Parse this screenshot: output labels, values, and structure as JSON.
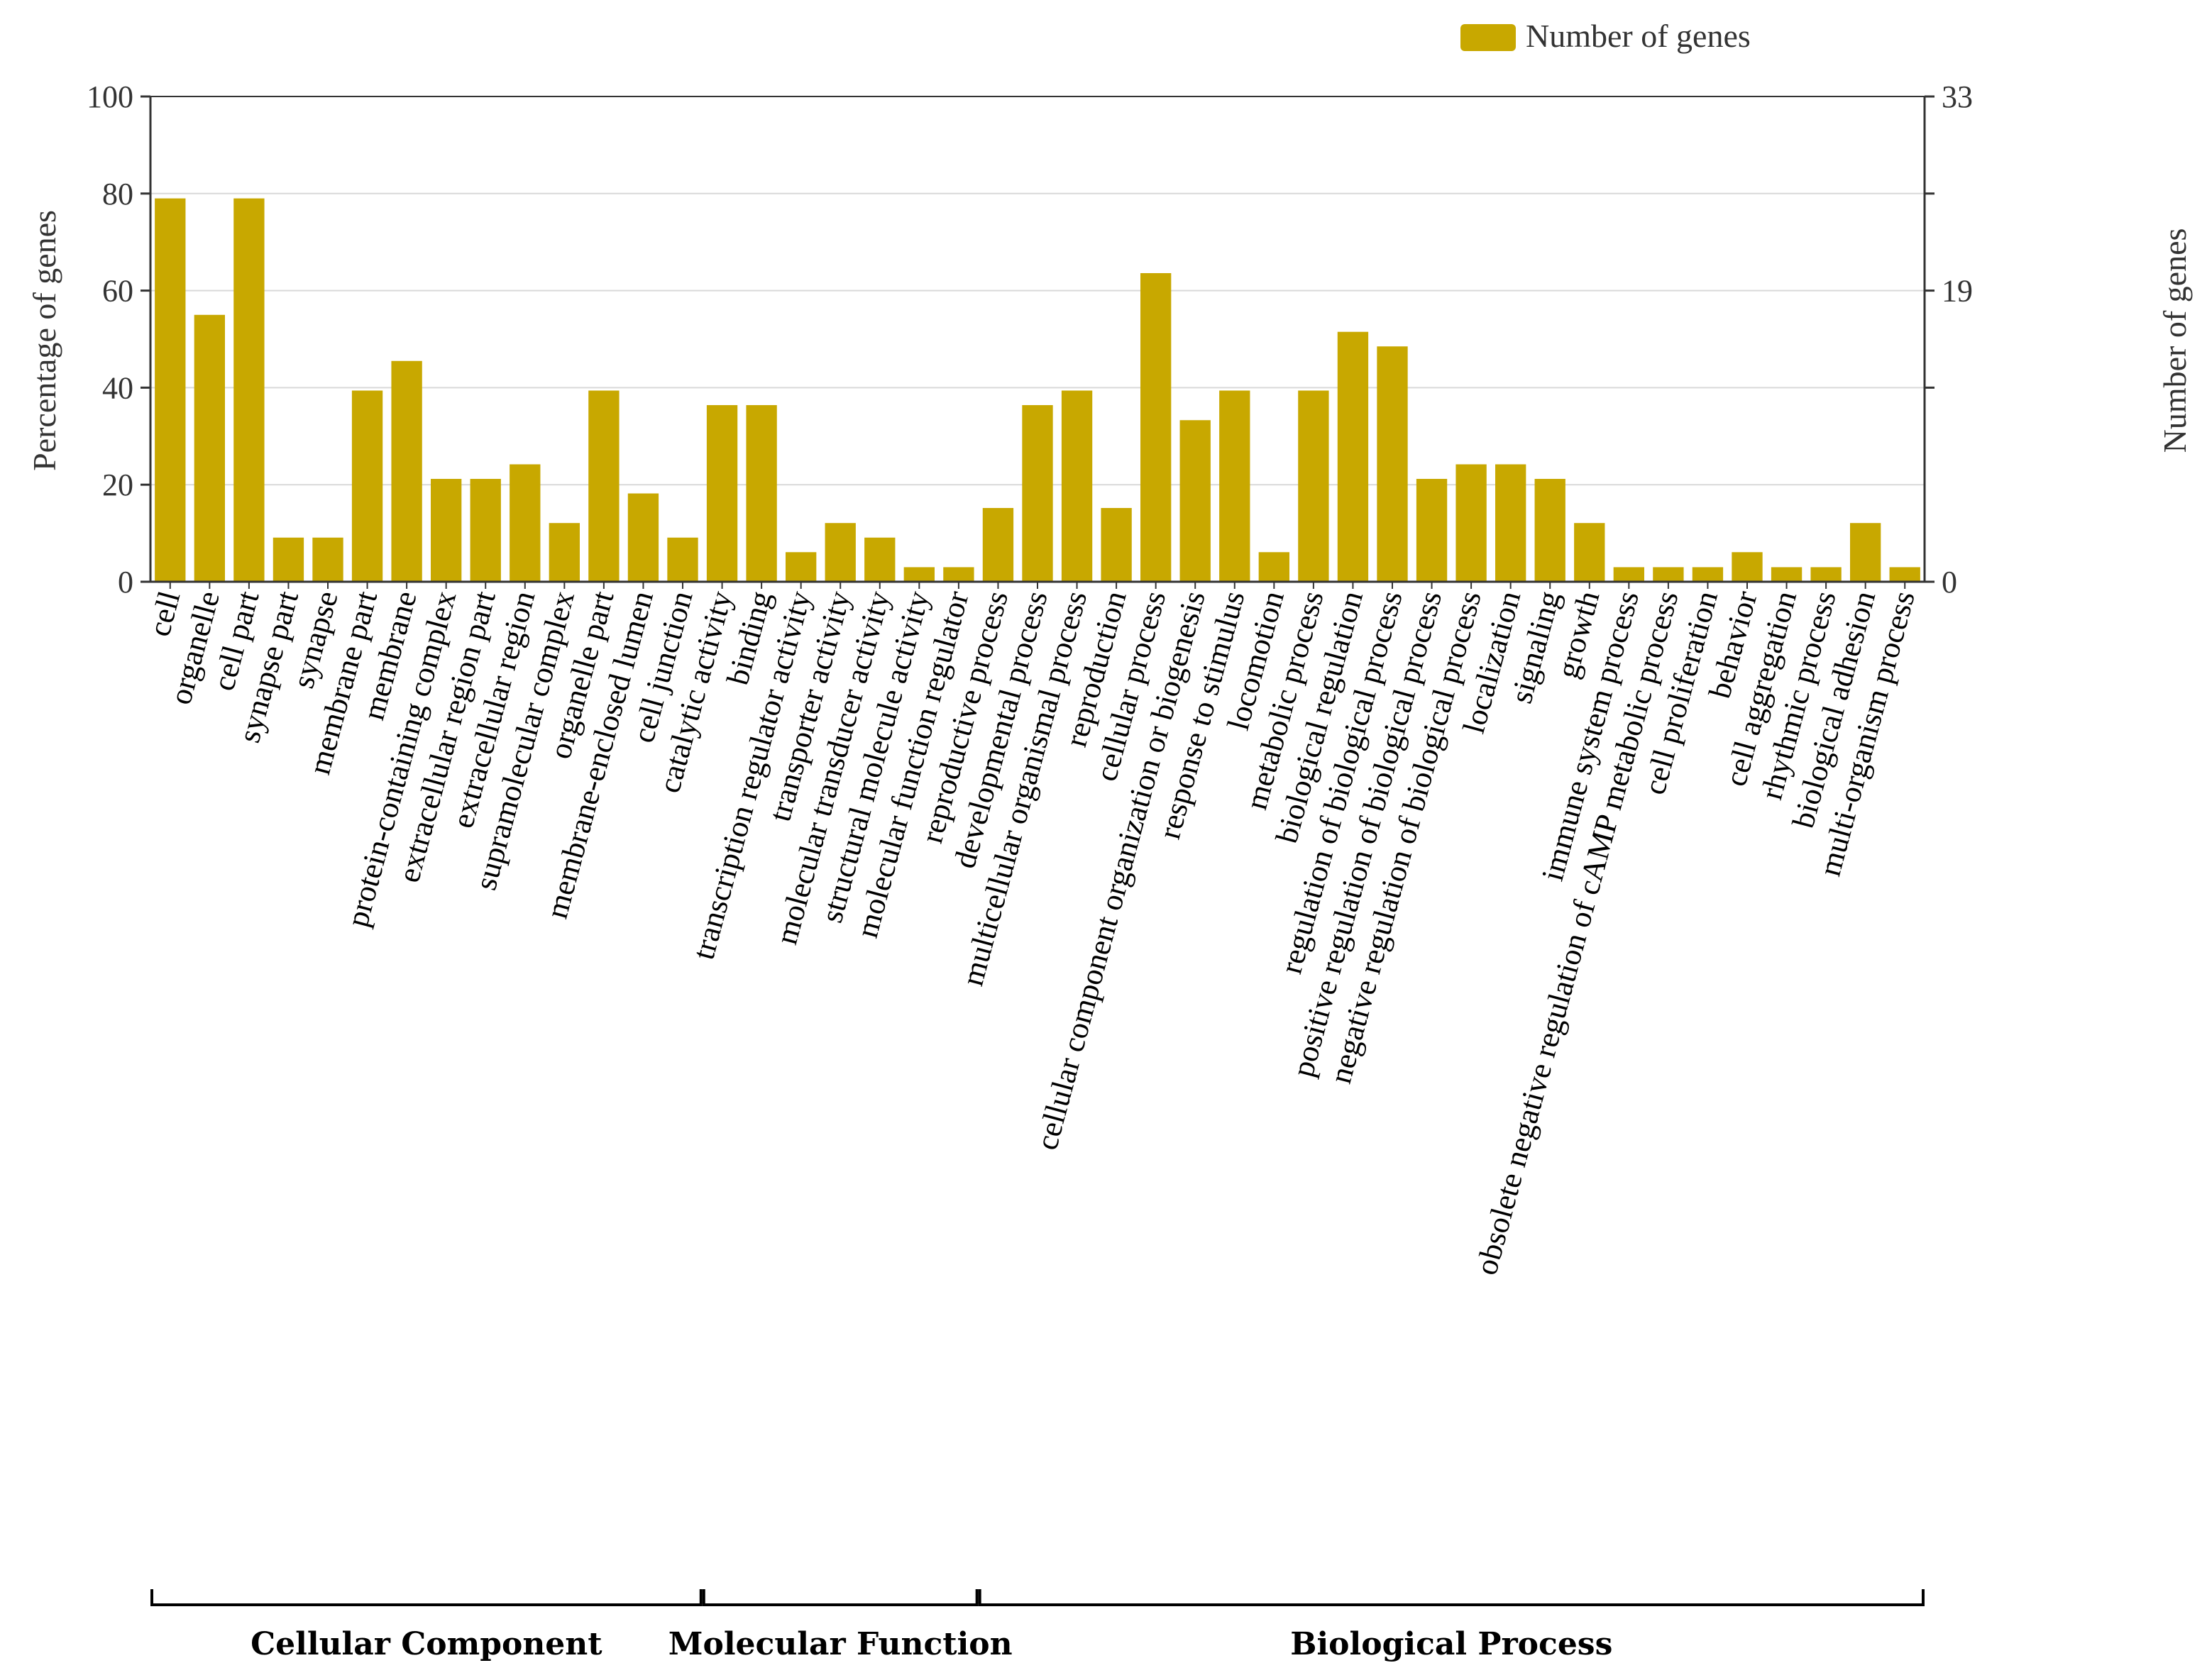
{
  "colors": {
    "bar": "#c8a800",
    "grid": "#d9d9d9",
    "axis": "#333333"
  },
  "chart_data": {
    "type": "bar",
    "legend": "Number of genes",
    "ylabel_left": "Percentage of genes",
    "ylabel_right": "Number of genes",
    "ylim": [
      0,
      100
    ],
    "yticks": [
      "0",
      "20",
      "40",
      "60",
      "80",
      "100"
    ],
    "right_ticks": [
      "0",
      "19",
      "33"
    ],
    "categories": [
      "cell",
      "organelle",
      "cell part",
      "synapse part",
      "synapse",
      "membrane part",
      "membrane",
      "protein-containing complex",
      "extracellular region part",
      "extracellular region",
      "supramolecular complex",
      "organelle part",
      "membrane-enclosed lumen",
      "cell junction",
      "catalytic activity",
      "binding",
      "transcription regulator activity",
      "transporter activity",
      "molecular transducer activity",
      "structural molecule activity",
      "molecular function regulator",
      "reproductive process",
      "developmental process",
      "multicellular organismal process",
      "reproduction",
      "cellular process",
      "cellular component organization or biogenesis",
      "response to stimulus",
      "locomotion",
      "metabolic process",
      "biological regulation",
      "regulation of biological process",
      "positive regulation of biological process",
      "negative regulation of biological process",
      "localization",
      "signaling",
      "growth",
      "immune system process",
      "obsolete negative regulation of cAMP metabolic process",
      "cell proliferation",
      "behavior",
      "cell aggregation",
      "rhythmic process",
      "biological adhesion",
      "multi-organism process"
    ],
    "values": [
      79,
      55,
      79,
      9.1,
      9.1,
      39.4,
      45.5,
      21.2,
      21.2,
      24.2,
      12.1,
      39.4,
      18.2,
      9.1,
      36.4,
      36.4,
      6.1,
      12.1,
      9.1,
      3,
      3,
      15.2,
      36.4,
      39.4,
      15.2,
      63.6,
      33.3,
      39.4,
      6.1,
      39.4,
      51.5,
      48.5,
      21.2,
      24.2,
      24.2,
      21.2,
      12.1,
      3,
      3,
      3,
      6.1,
      3,
      3,
      12.1,
      3
    ],
    "groups": [
      {
        "label": "Cellular Component",
        "start": 0,
        "end": 13
      },
      {
        "label": "Molecular Function",
        "start": 14,
        "end": 20
      },
      {
        "label": "Biological Process",
        "start": 21,
        "end": 44
      }
    ]
  }
}
